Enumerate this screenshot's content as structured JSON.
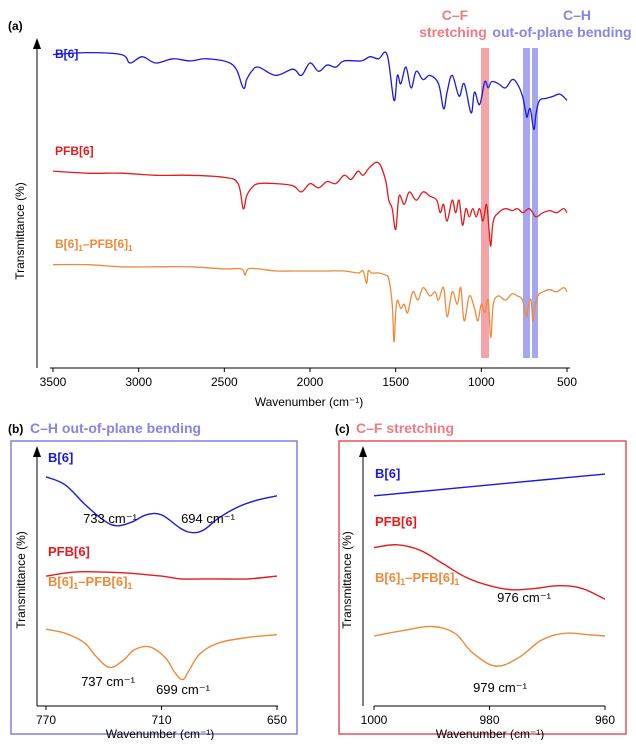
{
  "colors": {
    "blue": "#1a1adf",
    "red": "#e41a1c",
    "orange": "#ee8a3a",
    "band_red": "#f4a3a8",
    "band_blue": "#a7a7f0",
    "frame_blue": "#8080e0",
    "frame_red": "#e8505a",
    "axis": "#000000"
  },
  "chart_data": [
    {
      "panel": "(a)",
      "type": "line",
      "xlabel": "Wavenumber (cm⁻¹)",
      "ylabel": "Transmittance (%)",
      "xlim": [
        3500,
        500
      ],
      "xticks": [
        "3500",
        "3000",
        "2500",
        "2000",
        "1500",
        "1000",
        "500"
      ],
      "band_labels": {
        "cf": [
          "C–F",
          "stretching"
        ],
        "ch": [
          "C–H",
          "out-of-plane bending"
        ]
      },
      "series": [
        {
          "name": "B[6]",
          "color": "blue",
          "x": [
            3500,
            3300,
            3100,
            3050,
            2980,
            2900,
            2800,
            2700,
            2600,
            2450,
            2390,
            2370,
            2340,
            2300,
            2200,
            2100,
            2050,
            2000,
            1950,
            1900,
            1850,
            1800,
            1700,
            1650,
            1600,
            1550,
            1510,
            1490,
            1470,
            1440,
            1410,
            1380,
            1340,
            1300,
            1250,
            1220,
            1200,
            1170,
            1130,
            1100,
            1060,
            1040,
            1010,
            980,
            960,
            940,
            900,
            860,
            820,
            790,
            760,
            740,
            733,
            715,
            694,
            680,
            660,
            620,
            580,
            540,
            500
          ],
          "y": [
            66,
            66.5,
            66,
            64,
            65.5,
            64,
            65,
            64.5,
            65,
            63.5,
            58,
            60,
            62,
            63,
            61,
            62.5,
            61,
            64,
            62,
            63.5,
            63,
            64.5,
            64.5,
            65.5,
            65,
            66,
            55,
            61,
            59,
            63,
            58,
            62,
            60,
            61,
            59,
            53,
            57,
            61,
            56,
            59,
            52,
            57,
            54,
            59.5,
            58,
            59.5,
            59,
            58,
            60,
            59,
            56,
            52,
            51,
            53,
            48,
            52,
            55,
            55.5,
            56,
            56.5,
            55
          ]
        },
        {
          "name": "PFB[6]",
          "color": "red",
          "x": [
            3500,
            3300,
            3100,
            2900,
            2700,
            2500,
            2420,
            2390,
            2370,
            2340,
            2300,
            2200,
            2100,
            2050,
            2000,
            1950,
            1900,
            1850,
            1800,
            1760,
            1720,
            1690,
            1650,
            1600,
            1560,
            1540,
            1520,
            1500,
            1480,
            1450,
            1420,
            1380,
            1340,
            1300,
            1260,
            1240,
            1220,
            1200,
            1170,
            1150,
            1130,
            1110,
            1090,
            1070,
            1050,
            1030,
            1010,
            990,
            970,
            955,
            945,
            930,
            900,
            860,
            820,
            790,
            760,
            740,
            720,
            700,
            680,
            640,
            600,
            560,
            520,
            500
          ],
          "y": [
            38,
            37.5,
            37.5,
            37,
            37,
            36.5,
            35,
            29,
            32,
            34,
            35,
            35,
            34.5,
            33,
            35,
            34,
            35.5,
            35,
            37,
            36,
            38,
            37,
            39,
            40,
            36,
            31,
            29,
            24,
            32,
            30,
            33,
            31,
            33,
            32,
            31,
            28,
            30,
            26,
            31,
            28,
            31,
            25,
            29,
            27,
            29,
            27,
            29,
            26,
            30,
            24,
            20,
            26,
            28,
            29,
            28.5,
            29,
            28,
            28.5,
            29,
            28,
            27,
            28,
            28.5,
            28,
            29,
            28
          ]
        },
        {
          "name": "B[6]₁–PFB[6]₁",
          "color": "orange",
          "x": [
            3500,
            3300,
            3100,
            2900,
            2700,
            2500,
            2400,
            2380,
            2360,
            2300,
            2200,
            2100,
            2000,
            1900,
            1800,
            1720,
            1690,
            1670,
            1660,
            1640,
            1600,
            1560,
            1540,
            1520,
            1510,
            1500,
            1490,
            1470,
            1450,
            1430,
            1400,
            1370,
            1340,
            1300,
            1270,
            1250,
            1220,
            1200,
            1170,
            1140,
            1120,
            1100,
            1070,
            1040,
            1020,
            1000,
            980,
            960,
            945,
            930,
            900,
            860,
            820,
            790,
            760,
            737,
            725,
            710,
            699,
            690,
            670,
            640,
            600,
            560,
            520,
            500
          ],
          "y": [
            15.5,
            15.5,
            15,
            15,
            15,
            14.5,
            14.5,
            13,
            14.5,
            14.5,
            14,
            14,
            14,
            14,
            14,
            13.5,
            14,
            11,
            14,
            13.5,
            13.5,
            13,
            12,
            6,
            -3,
            4,
            7,
            5,
            6,
            4,
            9,
            7,
            10,
            8,
            9,
            7,
            10,
            3,
            9,
            6,
            10,
            2,
            8,
            5,
            2,
            6,
            4,
            7,
            -2,
            6,
            8,
            7,
            8.5,
            8,
            7,
            3,
            6,
            7,
            2,
            5,
            8,
            9,
            9.5,
            9,
            10,
            9
          ]
        }
      ]
    },
    {
      "panel": "(b)",
      "type": "line",
      "title": "C–H out-of-plane bending",
      "xlabel": "Wavenumber (cm⁻¹)",
      "ylabel": "Transmittance (%)",
      "xlim": [
        770,
        650
      ],
      "xticks": [
        "770",
        "710",
        "650"
      ],
      "series": [
        {
          "name": "B[6]",
          "color": "blue",
          "x": [
            770,
            760,
            750,
            740,
            733,
            725,
            718,
            710,
            700,
            694,
            688,
            680,
            670,
            660,
            650
          ],
          "y": [
            82,
            79,
            72,
            66,
            64,
            65.5,
            68,
            68,
            63,
            61.5,
            62.5,
            67,
            71,
            73.5,
            75
          ]
        },
        {
          "name": "PFB[6]",
          "color": "red",
          "x": [
            770,
            755,
            740,
            725,
            710,
            700,
            690,
            680,
            665,
            650
          ],
          "y": [
            45.5,
            47,
            47,
            46.5,
            45.5,
            44.5,
            44.5,
            44.5,
            44.5,
            45.5
          ]
        },
        {
          "name": "B[6]₁–PFB[6]₁",
          "color": "orange",
          "x": [
            770,
            760,
            750,
            744,
            737,
            730,
            724,
            716,
            708,
            703,
            699,
            696,
            690,
            680,
            665,
            650
          ],
          "y": [
            26,
            24.5,
            21,
            16,
            12,
            14.5,
            18.5,
            19.5,
            15.5,
            10,
            7.5,
            10.5,
            17,
            21,
            23,
            24
          ]
        }
      ],
      "annotations": [
        "733 cm⁻¹",
        "694 cm⁻¹",
        "737 cm⁻¹",
        "699 cm⁻¹"
      ]
    },
    {
      "panel": "(c)",
      "type": "line",
      "title": "C–F stretching",
      "xlabel": "Wavenumber (cm⁻¹)",
      "ylabel": "Transmittance (%)",
      "xlim": [
        1000,
        960
      ],
      "xticks": [
        "1000",
        "980",
        "960"
      ],
      "series": [
        {
          "name": "B[6]",
          "color": "blue",
          "x": [
            1000,
            990,
            980,
            970,
            960
          ],
          "y": [
            75,
            77,
            79,
            81,
            83
          ]
        },
        {
          "name": "PFB[6]",
          "color": "red",
          "x": [
            1000,
            996,
            992,
            988,
            984,
            980,
            976,
            972,
            968,
            964,
            960
          ],
          "y": [
            56,
            57,
            55,
            50,
            45,
            42,
            40.5,
            41,
            42,
            41,
            37
          ]
        },
        {
          "name": "B[6]₁–PFB[6]₁",
          "color": "orange",
          "x": [
            1000,
            995,
            990,
            986,
            983,
            979,
            975,
            971,
            967,
            963,
            960
          ],
          "y": [
            23.5,
            25.5,
            27,
            24.5,
            17.5,
            12.5,
            15.5,
            22,
            24.5,
            24,
            23.5
          ]
        }
      ],
      "annotations": [
        "976 cm⁻¹",
        "979 cm⁻¹"
      ]
    }
  ]
}
